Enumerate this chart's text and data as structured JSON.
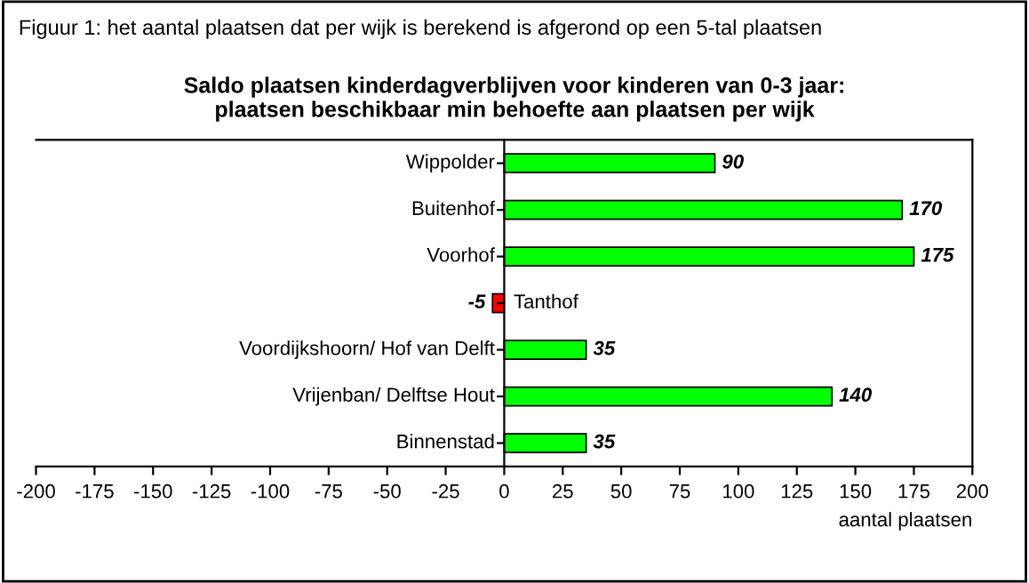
{
  "chart_data": {
    "type": "bar",
    "orientation": "horizontal",
    "title": "Saldo plaatsen kinderdagverblijven voor kinderen van 0-3 jaar:\nplaatsen beschikbaar min behoefte aan plaatsen per wijk",
    "annotations": [
      "Figuur 1: het aantal plaatsen dat per wijk is berekend is afgerond op een 5-tal plaatsen"
    ],
    "xlabel": "aantal plaatsen",
    "categories": [
      "Wippolder",
      "Buitenhof",
      "Voorhof",
      "Tanthof",
      "Voordijkshoorn/ Hof van Delft",
      "Vrijenban/ Delftse Hout",
      "Binnenstad"
    ],
    "values": [
      90,
      170,
      175,
      -5,
      35,
      140,
      35
    ],
    "colors": [
      "#00ff00",
      "#00ff00",
      "#00ff00",
      "#ff0000",
      "#00ff00",
      "#00ff00",
      "#00ff00"
    ],
    "xlim": [
      -200,
      200
    ],
    "xticks": [
      -200,
      -175,
      -150,
      -125,
      -100,
      -75,
      -50,
      -25,
      0,
      25,
      50,
      75,
      100,
      125,
      150,
      175,
      200
    ],
    "data_labels": true,
    "grid": false,
    "legend": false
  }
}
